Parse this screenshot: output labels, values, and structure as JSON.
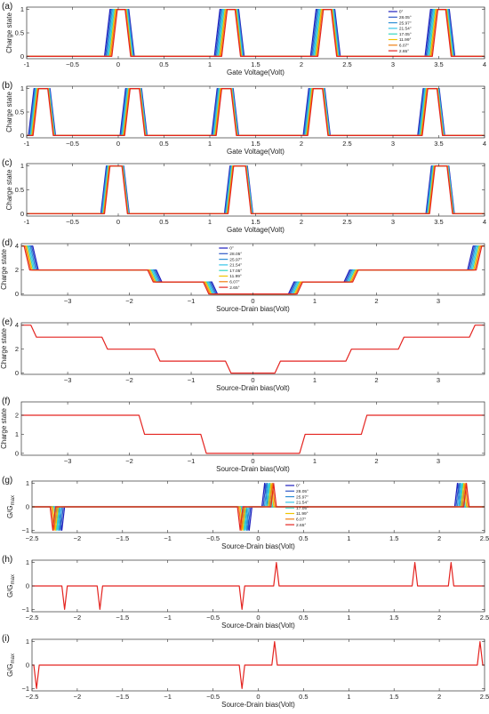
{
  "legend_colors": [
    "#1f1fbf",
    "#2f58c7",
    "#2f8fd6",
    "#35c4e8",
    "#34d6c0",
    "#f0c400",
    "#f07f10",
    "#e42420"
  ],
  "chart_data": [
    {
      "id": "a",
      "type": "line",
      "letter": "(a)",
      "xlabel": "Gate Voltage(Volt)",
      "ylabel": "Charge state",
      "xlim": [
        -1,
        4
      ],
      "ylim": [
        -0.05,
        1.05
      ],
      "xticks": [
        -1,
        -0.5,
        0,
        0.5,
        1,
        1.5,
        2,
        2.5,
        3,
        3.5,
        4
      ],
      "xtick_labels": [
        "-1",
        "−0.5",
        "0",
        "0.5",
        "1",
        "1.5",
        "2",
        "2.5",
        "3",
        "3.5",
        "4"
      ],
      "yticks": [
        0,
        0.5,
        1
      ],
      "ytick_labels": [
        "0",
        "0.5",
        "1"
      ],
      "legend": {
        "position": "top-center",
        "entries": [
          "0°",
          "28.05°",
          "25.97°",
          "21.54°",
          "17.05°",
          "11.99°",
          "6.07°",
          "2.65°"
        ]
      },
      "kind": "pulses",
      "low": 0,
      "high": 1,
      "pulses": [
        [
          -0.1,
          0.15
        ],
        [
          1.1,
          1.35
        ],
        [
          2.15,
          2.4
        ],
        [
          3.4,
          3.65
        ]
      ],
      "spread": [
        -0.05,
        0.03
      ]
    },
    {
      "id": "b",
      "type": "line",
      "letter": "(b)",
      "xlabel": "Gate Voltage(Volt)",
      "ylabel": "Charge state",
      "xlim": [
        -1,
        4
      ],
      "ylim": [
        -0.05,
        1.05
      ],
      "xticks": [
        -1,
        -0.5,
        0,
        0.5,
        1,
        1.5,
        2,
        2.5,
        3,
        3.5,
        4
      ],
      "xtick_labels": [
        "-1",
        "−0.5",
        "0",
        "0.5",
        "1",
        "1.5",
        "2",
        "2.5",
        "3",
        "3.5",
        "4"
      ],
      "yticks": [
        0,
        0.5,
        1
      ],
      "ytick_labels": [
        "0",
        "0.5",
        "1"
      ],
      "kind": "pulses",
      "low": 0,
      "high": 1,
      "pulses": [
        [
          -0.95,
          -0.7
        ],
        [
          0.05,
          0.3
        ],
        [
          1.05,
          1.3
        ],
        [
          2.05,
          2.3
        ],
        [
          3.3,
          3.55
        ]
      ],
      "spread": [
        -0.03,
        0.02
      ]
    },
    {
      "id": "c",
      "type": "line",
      "letter": "(c)",
      "xlabel": "Gate Voltage(Volt)",
      "ylabel": "Charge state",
      "xlim": [
        -1,
        4
      ],
      "ylim": [
        -0.05,
        1.05
      ],
      "xticks": [
        -1,
        -0.5,
        0,
        0.5,
        1,
        1.5,
        2,
        2.5,
        3,
        3.5,
        4
      ],
      "xtick_labels": [
        "-1",
        "−0.5",
        "0",
        "0.5",
        "1",
        "1.5",
        "2",
        "2.5",
        "3",
        "3.5",
        "4"
      ],
      "yticks": [
        0,
        0.5,
        1
      ],
      "ytick_labels": [
        "0",
        "0.5",
        "1"
      ],
      "kind": "pulses",
      "low": 0,
      "high": 1,
      "pulses": [
        [
          -0.15,
          0.1
        ],
        [
          1.2,
          1.45
        ],
        [
          3.4,
          3.65
        ]
      ],
      "spread": [
        -0.04,
        0.0
      ]
    },
    {
      "id": "d",
      "type": "line",
      "letter": "(d)",
      "xlabel": "Source-Drain bias(Volt)",
      "ylabel": "Charge state",
      "xlim": [
        -3.75,
        3.75
      ],
      "ylim": [
        -0.1,
        4.2
      ],
      "xticks": [
        -3,
        -2,
        -1,
        0,
        1,
        2,
        3
      ],
      "xtick_labels": [
        "−3",
        "−2",
        "−1",
        "0",
        "1",
        "2",
        "3"
      ],
      "yticks": [
        0,
        2,
        4
      ],
      "ytick_labels": [
        "0",
        "2",
        "4"
      ],
      "legend": {
        "position": "top-center",
        "entries": [
          "0°",
          "28.05°",
          "25.97°",
          "21.54°",
          "17.05°",
          "11.99°",
          "6.07°",
          "2.65°"
        ]
      },
      "kind": "staircase",
      "steps": [
        [
          0.7,
          1
        ],
        [
          1.6,
          2
        ],
        [
          3.6,
          4
        ]
      ],
      "spread": [
        -0.08,
        0.06
      ]
    },
    {
      "id": "e",
      "type": "line",
      "letter": "(e)",
      "xlabel": "Source-Drain bias(Volt)",
      "ylabel": "Charge state",
      "xlim": [
        -3.75,
        3.75
      ],
      "ylim": [
        -0.1,
        4.2
      ],
      "xticks": [
        -3,
        -2,
        -1,
        0,
        1,
        2,
        3
      ],
      "xtick_labels": [
        "−3",
        "−2",
        "−1",
        "0",
        "1",
        "2",
        "3"
      ],
      "yticks": [
        0,
        2,
        4
      ],
      "ytick_labels": [
        "0",
        "2",
        "4"
      ],
      "kind": "staircase",
      "steps": [
        [
          0.4,
          1
        ],
        [
          1.55,
          2
        ],
        [
          2.4,
          3
        ],
        [
          3.55,
          4
        ]
      ],
      "spread": [
        0,
        0
      ]
    },
    {
      "id": "f",
      "type": "line",
      "letter": "(f)",
      "xlabel": "Source-Drain bias(Volt)",
      "ylabel": "Charge state",
      "xlim": [
        -3.75,
        3.75
      ],
      "ylim": [
        -0.1,
        2.7
      ],
      "xticks": [
        -3,
        -2,
        -1,
        0,
        1,
        2,
        3
      ],
      "xtick_labels": [
        "−3",
        "−2",
        "−1",
        "0",
        "1",
        "2",
        "3"
      ],
      "yticks": [
        0,
        1,
        2
      ],
      "ytick_labels": [
        "0",
        "1",
        "2"
      ],
      "kind": "staircase",
      "steps": [
        [
          0.8,
          1
        ],
        [
          1.8,
          2
        ]
      ],
      "spread": [
        0,
        0
      ]
    },
    {
      "id": "g",
      "type": "line",
      "letter": "(g)",
      "xlabel": "Source-Drain bias(Volt)",
      "ylabel": "G/G",
      "ylabel_sub": "max",
      "xlim": [
        -2.5,
        2.5
      ],
      "ylim": [
        -1.1,
        1.1
      ],
      "xticks": [
        -2.5,
        -2,
        -1.5,
        -1,
        -0.5,
        0,
        0.5,
        1,
        1.5,
        2,
        2.5
      ],
      "xtick_labels": [
        "−2.5",
        "−2",
        "−1.5",
        "−1",
        "−0.5",
        "0",
        "0.5",
        "1",
        "1.5",
        "2",
        "2.5"
      ],
      "yticks": [
        -1,
        0,
        1
      ],
      "ytick_labels": [
        "−1",
        "0",
        "1"
      ],
      "legend": {
        "position": "top-center",
        "entries": [
          "0°",
          "28.05°",
          "25.97°",
          "21.54°",
          "17.05°",
          "11.99°",
          "6.07°",
          "2.65°"
        ]
      },
      "kind": "spikes",
      "spikes": [
        [
          -2.22,
          -1
        ],
        [
          -0.15,
          -1
        ],
        [
          0.12,
          1
        ],
        [
          2.25,
          1
        ]
      ],
      "spread": [
        -0.05,
        0.05
      ]
    },
    {
      "id": "h",
      "type": "line",
      "letter": "(h)",
      "xlabel": "Source-Drain bias(Volt)",
      "ylabel": "G/G",
      "ylabel_sub": "max",
      "xlim": [
        -2.5,
        2.5
      ],
      "ylim": [
        -1.1,
        1.1
      ],
      "xticks": [
        -2.5,
        -2,
        -1.5,
        -1,
        -0.5,
        0,
        0.5,
        1,
        1.5,
        2,
        2.5
      ],
      "xtick_labels": [
        "−2.5",
        "−2",
        "−1.5",
        "−1",
        "−0.5",
        "0",
        "0.5",
        "1",
        "1.5",
        "2",
        "2.5"
      ],
      "yticks": [
        -1,
        0,
        1
      ],
      "ytick_labels": [
        "−1",
        "0",
        "1"
      ],
      "kind": "spikes",
      "spikes": [
        [
          -2.14,
          -1
        ],
        [
          -1.75,
          -1
        ],
        [
          -0.18,
          -1
        ],
        [
          0.2,
          1
        ],
        [
          1.73,
          1
        ],
        [
          2.13,
          1
        ]
      ],
      "spread": [
        0,
        0
      ]
    },
    {
      "id": "i",
      "type": "line",
      "letter": "(i)",
      "xlabel": "Source-Drain bias(Volt)",
      "ylabel": "G/G",
      "ylabel_sub": "max",
      "xlim": [
        -2.5,
        2.5
      ],
      "ylim": [
        -1.1,
        1.1
      ],
      "xticks": [
        -2.5,
        -2,
        -1.5,
        -1,
        -0.5,
        0,
        0.5,
        1,
        1.5,
        2,
        2.5
      ],
      "xtick_labels": [
        "−2.5",
        "−2",
        "−1.5",
        "−1",
        "−0.5",
        "0",
        "0.5",
        "1",
        "1.5",
        "2",
        "2.5"
      ],
      "yticks": [
        -1,
        0,
        1
      ],
      "ytick_labels": [
        "−1",
        "0",
        "1"
      ],
      "kind": "spikes",
      "spikes": [
        [
          -2.45,
          -1
        ],
        [
          -0.18,
          -1
        ],
        [
          0.18,
          1
        ],
        [
          2.45,
          1
        ]
      ],
      "spread": [
        0,
        0
      ]
    }
  ]
}
